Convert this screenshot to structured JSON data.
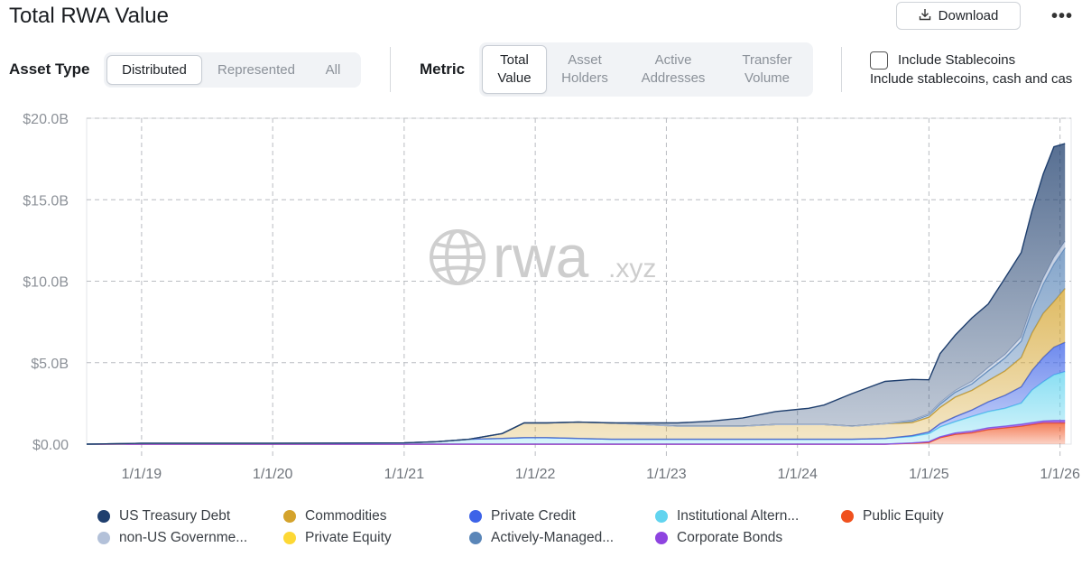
{
  "page": {
    "title": "Total RWA Value",
    "download_label": "Download",
    "more_label": "•••"
  },
  "controls": {
    "asset_type": {
      "label": "Asset Type",
      "options": [
        "Distributed",
        "Represented",
        "All"
      ],
      "selected": "Distributed"
    },
    "metric": {
      "label": "Metric",
      "options": [
        [
          "Total",
          "Value"
        ],
        [
          "Asset",
          "Holders"
        ],
        [
          "Active",
          "Addresses"
        ],
        [
          "Transfer",
          "Volume"
        ]
      ],
      "selected": "Total Value"
    },
    "stablecoins": {
      "label": "Include Stablecoins",
      "description": "Include stablecoins, cash and cas",
      "checked": false
    }
  },
  "watermark": {
    "text": "rwa",
    "suffix": ".xyz"
  },
  "chart_data": {
    "type": "area",
    "stacked": true,
    "ylim": [
      0,
      20
    ],
    "y_unit": "B USD",
    "y_ticks": [
      0,
      5,
      10,
      15,
      20
    ],
    "y_tick_labels": [
      "$0.00",
      "$5.0B",
      "$10.0B",
      "$15.0B",
      "$20.0B"
    ],
    "x_ticks": [
      "2019-01-01",
      "2020-01-01",
      "2021-01-01",
      "2022-01-01",
      "2023-01-01",
      "2024-01-01",
      "2025-01-01",
      "2026-01-01"
    ],
    "x_tick_labels": [
      "1/1/19",
      "1/1/20",
      "1/1/21",
      "1/1/22",
      "1/1/23",
      "1/1/24",
      "1/1/25",
      "1/1/26"
    ],
    "x_range": [
      "2018-08-01",
      "2026-02-01"
    ],
    "grid": true,
    "legend_position": "bottom",
    "dates": [
      "2018-08-01",
      "2019-01-01",
      "2020-01-01",
      "2021-01-01",
      "2021-04-01",
      "2021-07-01",
      "2021-10-01",
      "2021-12-01",
      "2022-02-01",
      "2022-05-01",
      "2022-08-01",
      "2022-11-01",
      "2023-02-01",
      "2023-05-01",
      "2023-08-01",
      "2023-11-01",
      "2024-02-01",
      "2024-03-15",
      "2024-06-01",
      "2024-09-01",
      "2024-11-15",
      "2025-01-01",
      "2025-02-01",
      "2025-03-15",
      "2025-05-01",
      "2025-06-15",
      "2025-08-01",
      "2025-09-15",
      "2025-10-15",
      "2025-11-15",
      "2025-12-15",
      "2026-01-15"
    ],
    "series": [
      {
        "name": "Public Equity",
        "color": "#f0511e",
        "values": [
          0,
          0,
          0,
          0,
          0,
          0,
          0,
          0,
          0,
          0,
          0,
          0,
          0,
          0,
          0,
          0,
          0,
          0,
          0,
          0,
          0.05,
          0.1,
          0.4,
          0.6,
          0.7,
          0.9,
          1.0,
          1.1,
          1.2,
          1.3,
          1.3,
          1.3
        ]
      },
      {
        "name": "Private Equity",
        "color": "#fdd835",
        "values": [
          0,
          0,
          0,
          0,
          0,
          0,
          0,
          0,
          0,
          0,
          0,
          0,
          0,
          0,
          0,
          0,
          0,
          0,
          0,
          0,
          0,
          0,
          0,
          0,
          0,
          0,
          0,
          0,
          0,
          0,
          0,
          0
        ]
      },
      {
        "name": "Corporate Bonds",
        "color": "#8e44e0",
        "values": [
          0,
          0,
          0,
          0,
          0,
          0,
          0,
          0,
          0,
          0,
          0,
          0,
          0,
          0,
          0,
          0,
          0,
          0,
          0,
          0,
          0.02,
          0.05,
          0.05,
          0.08,
          0.1,
          0.1,
          0.1,
          0.12,
          0.12,
          0.12,
          0.15,
          0.15
        ]
      },
      {
        "name": "Institutional Alternative Funds",
        "color": "#62d4ef",
        "values": [
          0,
          0.05,
          0.05,
          0.08,
          0.15,
          0.3,
          0.35,
          0.4,
          0.4,
          0.35,
          0.3,
          0.3,
          0.3,
          0.3,
          0.3,
          0.3,
          0.3,
          0.3,
          0.3,
          0.35,
          0.4,
          0.5,
          0.6,
          0.7,
          0.9,
          1.0,
          1.1,
          1.3,
          2.0,
          2.4,
          2.8,
          3.0
        ]
      },
      {
        "name": "Private Credit",
        "color": "#3d63e8",
        "values": [
          0,
          0,
          0,
          0,
          0,
          0,
          0,
          0,
          0,
          0,
          0,
          0,
          0,
          0,
          0,
          0,
          0,
          0,
          0,
          0,
          0.05,
          0.1,
          0.2,
          0.3,
          0.4,
          0.6,
          0.8,
          1.0,
          1.2,
          1.5,
          1.7,
          1.8
        ]
      },
      {
        "name": "Commodities",
        "color": "#d4a32c",
        "values": [
          0,
          0,
          0,
          0,
          0,
          0,
          0.3,
          0.9,
          0.9,
          1.0,
          1.0,
          0.9,
          0.8,
          0.8,
          0.8,
          0.9,
          0.9,
          0.9,
          0.8,
          0.9,
          0.8,
          0.9,
          1.0,
          1.2,
          1.2,
          1.3,
          1.5,
          1.8,
          2.3,
          2.7,
          2.8,
          3.3
        ]
      },
      {
        "name": "Actively-Managed Strategies",
        "color": "#5a86b8",
        "values": [
          0,
          0,
          0,
          0,
          0,
          0,
          0,
          0,
          0,
          0,
          0,
          0,
          0,
          0,
          0,
          0,
          0,
          0,
          0,
          0,
          0.1,
          0.15,
          0.2,
          0.3,
          0.4,
          0.6,
          0.8,
          1.0,
          1.4,
          1.8,
          2.3,
          2.5
        ]
      },
      {
        "name": "non-US Government Debt",
        "color": "#b3c1d9",
        "values": [
          0,
          0,
          0,
          0,
          0,
          0,
          0,
          0,
          0,
          0,
          0,
          0,
          0,
          0,
          0,
          0,
          0,
          0,
          0,
          0,
          0.05,
          0.05,
          0.1,
          0.1,
          0.15,
          0.2,
          0.2,
          0.25,
          0.3,
          0.35,
          0.4,
          0.4
        ]
      },
      {
        "name": "US Treasury Debt",
        "color": "#1f3f6e",
        "values": [
          0,
          0,
          0,
          0,
          0,
          0,
          0,
          0,
          0,
          0,
          0,
          0.1,
          0.2,
          0.3,
          0.5,
          0.8,
          1.0,
          1.2,
          2.0,
          2.6,
          2.5,
          2.1,
          3.0,
          3.4,
          3.9,
          3.9,
          4.7,
          5.2,
          5.8,
          6.4,
          6.8,
          6.0
        ]
      }
    ],
    "legend": [
      {
        "name": "US Treasury Debt",
        "label": "US Treasury Debt",
        "color": "#1f3f6e"
      },
      {
        "name": "Commodities",
        "label": "Commodities",
        "color": "#d4a32c"
      },
      {
        "name": "Private Credit",
        "label": "Private Credit",
        "color": "#3d63e8"
      },
      {
        "name": "Institutional Alternative Funds",
        "label": "Institutional Altern...",
        "color": "#62d4ef"
      },
      {
        "name": "Public Equity",
        "label": "Public Equity",
        "color": "#f0511e"
      },
      {
        "name": "non-US Government Debt",
        "label": "non-US Governme...",
        "color": "#b3c1d9"
      },
      {
        "name": "Private Equity",
        "label": "Private Equity",
        "color": "#fdd835"
      },
      {
        "name": "Actively-Managed Strategies",
        "label": "Actively-Managed...",
        "color": "#5a86b8"
      },
      {
        "name": "Corporate Bonds",
        "label": "Corporate Bonds",
        "color": "#8e44e0"
      }
    ]
  }
}
